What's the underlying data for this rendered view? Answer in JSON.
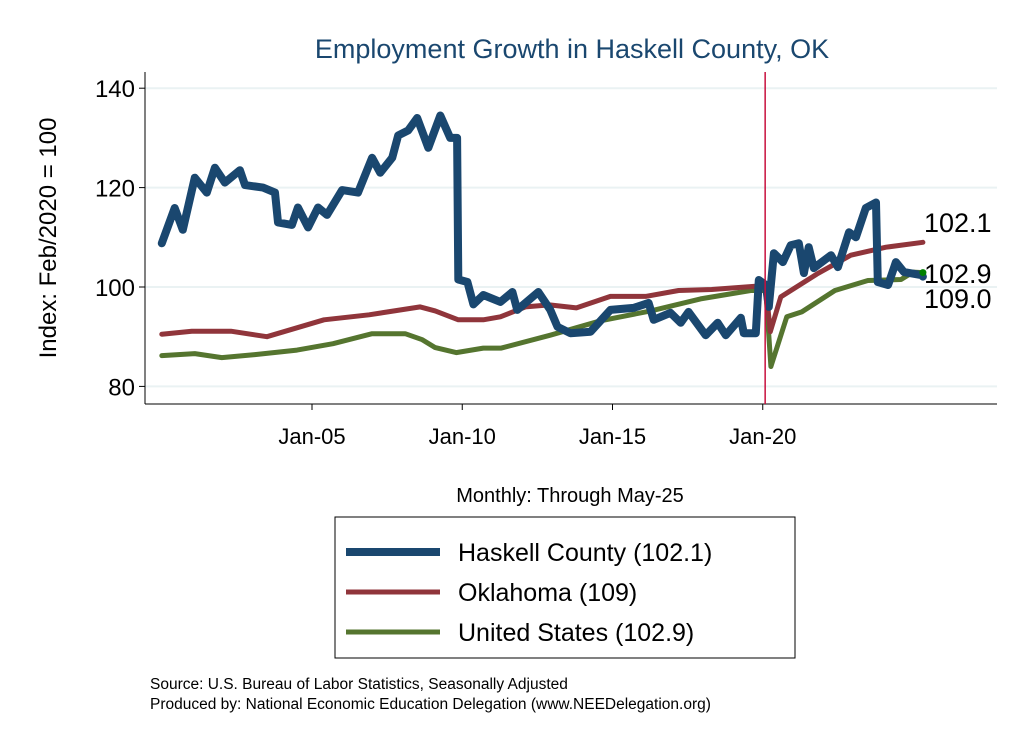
{
  "chart_data": {
    "type": "line",
    "title": "Employment Growth in Haskell  County, OK",
    "xlabel": "Monthly: Through May-25",
    "ylabel": "Index: Feb/2020 = 100",
    "ylim": [
      78,
      143
    ],
    "xlim": [
      1999.5,
      2028.0
    ],
    "yticks": [
      80,
      100,
      120,
      140
    ],
    "xticks": [
      {
        "x": 2005,
        "label": "Jan-05"
      },
      {
        "x": 2010,
        "label": "Jan-10"
      },
      {
        "x": 2015,
        "label": "Jan-15"
      },
      {
        "x": 2020,
        "label": "Jan-20"
      }
    ],
    "grid": true,
    "reference_line_x": 2020.08,
    "legend_position": "bottom",
    "series": [
      {
        "name": "Haskell  County",
        "legend": "Haskell  County (102.1)",
        "end_label": "102.1",
        "color": "#1a476f",
        "x": [
          2000.0,
          2000.43,
          2000.7,
          2001.1,
          2001.5,
          2001.77,
          2002.1,
          2002.6,
          2002.77,
          2003.37,
          2003.77,
          2003.87,
          2004.33,
          2004.53,
          2004.87,
          2005.2,
          2005.5,
          2006.0,
          2006.53,
          2007.0,
          2007.27,
          2007.67,
          2007.87,
          2008.2,
          2008.5,
          2008.87,
          2009.27,
          2009.6,
          2009.83,
          2009.87,
          2010.17,
          2010.37,
          2010.7,
          2011.27,
          2011.67,
          2011.83,
          2012.53,
          2012.93,
          2013.17,
          2013.6,
          2014.27,
          2014.93,
          2015.7,
          2016.2,
          2016.37,
          2016.93,
          2017.27,
          2017.53,
          2018.1,
          2018.5,
          2018.77,
          2019.27,
          2019.37,
          2019.77,
          2019.87,
          2020.1,
          2020.2,
          2020.37,
          2020.67,
          2020.93,
          2021.2,
          2021.37,
          2021.53,
          2021.7,
          2022.27,
          2022.5,
          2022.87,
          2023.1,
          2023.43,
          2023.77,
          2023.83,
          2024.17,
          2024.43,
          2024.7,
          2025.27,
          2025.33
        ],
        "y": [
          108.8,
          115.9,
          111.5,
          122,
          119,
          124,
          121,
          123.5,
          120.5,
          120,
          119,
          113,
          112.5,
          116,
          112,
          116,
          114.5,
          119.5,
          119,
          126,
          123,
          126,
          130.5,
          131.5,
          134,
          128,
          134.5,
          130,
          130,
          101.5,
          101,
          96.5,
          98.4,
          97,
          99,
          95.4,
          99,
          95.4,
          92,
          90.7,
          91,
          95.4,
          95.8,
          96.8,
          93.4,
          94.8,
          92.8,
          95,
          90.3,
          92.8,
          90.3,
          93.8,
          90.7,
          90.7,
          101.4,
          100.4,
          96,
          106.8,
          105,
          108.4,
          108.8,
          102.8,
          108,
          103.8,
          106.4,
          104,
          111,
          110,
          115.9,
          117,
          101,
          100.4,
          105,
          103,
          102.4,
          102.1
        ]
      },
      {
        "name": "Oklahoma",
        "legend": "Oklahoma (109)",
        "end_label": "109.0",
        "color": "#90353b",
        "x": [
          2000.0,
          2001.0,
          2002.3,
          2003.5,
          2005.4,
          2006.9,
          2008.6,
          2009.1,
          2009.87,
          2010.7,
          2011.27,
          2012.1,
          2012.9,
          2013.8,
          2014.93,
          2016.1,
          2017.2,
          2018.3,
          2019.87,
          2020.1,
          2020.25,
          2020.6,
          2021.8,
          2022.93,
          2024.1,
          2025.33
        ],
        "y": [
          90.5,
          91.1,
          91.1,
          90,
          93.4,
          94.4,
          96,
          95.2,
          93.4,
          93.4,
          94,
          96,
          96.4,
          95.8,
          98.1,
          98.1,
          99.3,
          99.5,
          100.2,
          100,
          91,
          98,
          102.6,
          106.4,
          108,
          109
        ]
      },
      {
        "name": "United States",
        "legend": "United States (102.9)",
        "end_label": "102.9",
        "color": "#55752f",
        "x": [
          2000.0,
          2001.1,
          2002.0,
          2003.1,
          2004.5,
          2005.7,
          2007.0,
          2008.1,
          2008.67,
          2009.1,
          2009.8,
          2010.7,
          2011.3,
          2012.93,
          2014.6,
          2016.27,
          2017.93,
          2019.6,
          2020.1,
          2020.27,
          2020.8,
          2021.3,
          2022.4,
          2023.5,
          2024.6,
          2025.0,
          2025.33
        ],
        "y": [
          86.2,
          86.6,
          85.8,
          86.4,
          87.3,
          88.6,
          90.6,
          90.6,
          89.4,
          87.8,
          86.8,
          87.7,
          87.7,
          90.3,
          93.2,
          95.2,
          97.6,
          99.3,
          99.3,
          84,
          94,
          95,
          99.3,
          101.3,
          101.5,
          103,
          102.9
        ]
      }
    ],
    "notes": [
      "Source: U.S. Bureau of Labor Statistics, Seasonally Adjusted",
      "Produced by: National Economic Education Delegation (www.NEEDelegation.org)"
    ]
  }
}
